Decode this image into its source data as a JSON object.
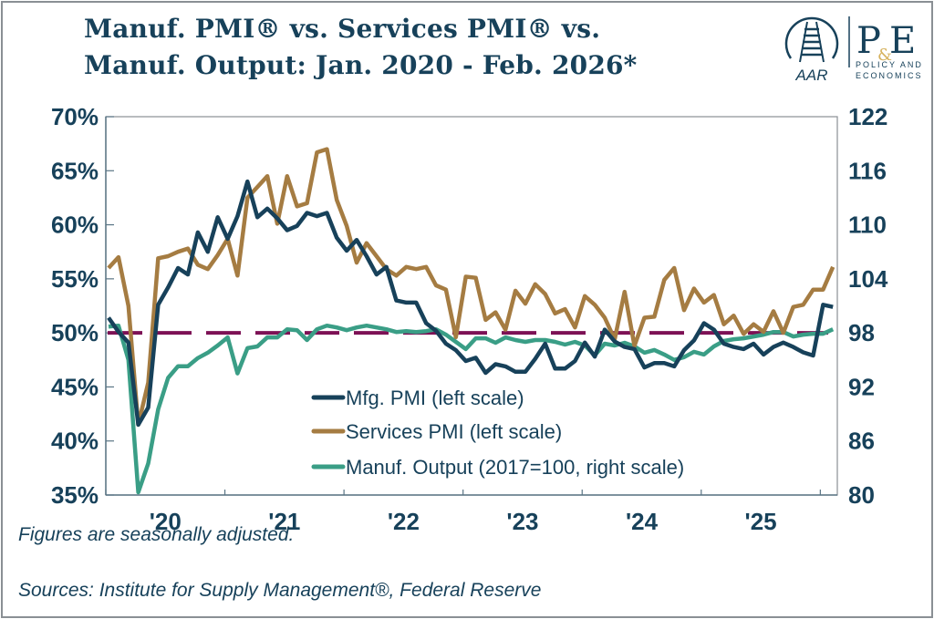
{
  "title_line1": "Manuf. PMI® vs. Services PMI® vs.",
  "title_line2": "Manuf. Output: Jan. 2020 - Feb. 2026*",
  "logo": {
    "aar": "AAR",
    "pe": "P&E",
    "sub1": "POLICY AND",
    "sub2": "ECONOMICS"
  },
  "footnote": "Figures are seasonally adjusted.",
  "sources": "Sources: Institute for Supply Management®, Federal Reserve",
  "colors": {
    "mfg": "#17415a",
    "services": "#a57c42",
    "output": "#3a9e86",
    "reference": "#7d1155",
    "text": "#17415a"
  },
  "chart_data": {
    "type": "line",
    "title": "Manuf. PMI® vs. Services PMI® vs. Manuf. Output: Jan. 2020 - Feb. 2026*",
    "x_start": "2020-01",
    "x_end": "2026-02",
    "x_tick_labels": [
      "'20",
      "'21",
      "'22",
      "'23",
      "'24",
      "'25"
    ],
    "left_axis": {
      "ylim": [
        35,
        70
      ],
      "ticks": [
        "35%",
        "40%",
        "45%",
        "50%",
        "55%",
        "60%",
        "65%",
        "70%"
      ],
      "values": [
        35,
        40,
        45,
        50,
        55,
        60,
        65,
        70
      ]
    },
    "right_axis": {
      "ylim": [
        80,
        122
      ],
      "ticks": [
        "80",
        "86",
        "92",
        "98",
        "104",
        "110",
        "116",
        "122"
      ],
      "values": [
        80,
        86,
        92,
        98,
        104,
        110,
        116,
        122
      ]
    },
    "reference_line": {
      "axis": "left",
      "value": 50,
      "style": "dashed"
    },
    "legend_placement": "bottom-center",
    "series": [
      {
        "name": "Mfg. PMI (left scale)",
        "axis": "left",
        "values": [
          51.4,
          50.1,
          49.1,
          41.5,
          43.1,
          52.6,
          54.2,
          56.0,
          55.4,
          59.3,
          57.5,
          60.7,
          58.7,
          60.8,
          64.0,
          60.7,
          61.5,
          60.6,
          59.5,
          59.9,
          61.1,
          60.8,
          61.1,
          58.8,
          57.6,
          58.6,
          57.1,
          55.4,
          56.1,
          53.0,
          52.8,
          52.8,
          50.9,
          50.2,
          49.0,
          48.4,
          47.4,
          47.7,
          46.3,
          47.1,
          46.9,
          46.4,
          46.4,
          47.6,
          49.0,
          46.7,
          46.7,
          47.4,
          49.1,
          47.8,
          50.3,
          49.2,
          48.7,
          48.5,
          46.8,
          47.2,
          47.2,
          46.9,
          48.4,
          49.3,
          50.9,
          50.3,
          49.0,
          48.7,
          48.5,
          49.0,
          48.0,
          48.7,
          49.1,
          48.7,
          48.2,
          47.9,
          52.6,
          52.4
        ]
      },
      {
        "name": "Services PMI (left scale)",
        "axis": "left",
        "values": [
          56.0,
          57.0,
          52.5,
          41.5,
          45.4,
          56.9,
          57.1,
          57.5,
          57.8,
          56.3,
          55.9,
          57.2,
          58.7,
          55.3,
          62.5,
          63.5,
          64.5,
          60.1,
          64.5,
          61.7,
          62.0,
          66.7,
          67.0,
          62.3,
          59.9,
          56.5,
          58.3,
          57.1,
          55.9,
          55.3,
          56.1,
          55.9,
          56.1,
          54.4,
          54.0,
          49.6,
          55.2,
          55.1,
          51.2,
          51.9,
          50.3,
          53.9,
          52.7,
          54.5,
          53.6,
          51.8,
          52.2,
          50.5,
          53.4,
          52.6,
          51.4,
          49.4,
          53.8,
          48.8,
          51.4,
          51.5,
          54.9,
          56.0,
          52.1,
          54.1,
          52.8,
          53.5,
          50.8,
          51.6,
          49.9,
          50.8,
          50.1,
          52.0,
          50.0,
          52.4,
          52.6,
          54.0,
          54.0,
          56.1
        ]
      },
      {
        "name": "Manuf. Output (2017=100, right scale)",
        "axis": "right",
        "values": [
          98.7,
          98.8,
          95.0,
          80.3,
          83.5,
          89.5,
          93.0,
          94.3,
          94.3,
          95.2,
          95.8,
          96.6,
          97.5,
          93.5,
          96.3,
          96.5,
          97.5,
          97.5,
          98.4,
          98.3,
          97.2,
          98.4,
          98.8,
          98.6,
          98.3,
          98.6,
          98.8,
          98.6,
          98.4,
          98.1,
          98.2,
          98.1,
          98.2,
          98.4,
          97.8,
          97.0,
          96.2,
          97.4,
          97.4,
          96.9,
          97.5,
          97.2,
          97.0,
          97.2,
          97.2,
          97.0,
          96.7,
          97.0,
          96.6,
          95.5,
          96.8,
          96.6,
          96.9,
          96.5,
          95.8,
          96.1,
          95.6,
          95.0,
          95.3,
          95.9,
          95.6,
          96.5,
          97.1,
          97.3,
          97.4,
          97.6,
          97.8,
          98.1,
          98.1,
          97.6,
          97.8,
          97.9,
          97.9,
          98.4
        ]
      }
    ]
  }
}
